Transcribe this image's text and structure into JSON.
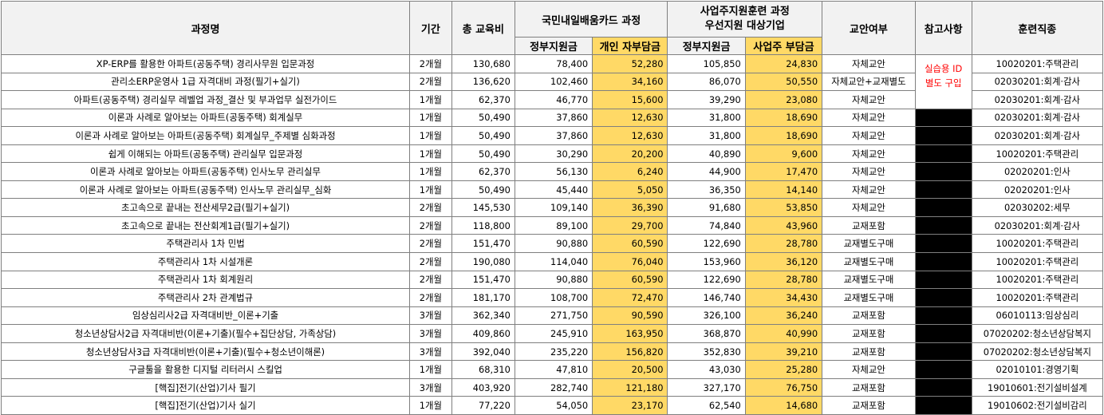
{
  "headers": {
    "course_name": "과정명",
    "period": "기간",
    "total_fee": "총 교육비",
    "card_group": "국민내일배움카드 과정",
    "employer_group_line1": "사업주지원훈련 과정",
    "employer_group_line2": "우선지원 대상기업",
    "textbook": "교안여부",
    "notes": "참고사항",
    "job_type": "훈련직종",
    "gov_support": "정부지원금",
    "personal_burden": "개인 자부담금",
    "gov_support2": "정부지원금",
    "employer_burden": "사업주 부담금"
  },
  "note_text_line1": "실습용 ID",
  "note_text_line2": "별도 구입",
  "colors": {
    "header_bg": "#f2f2f2",
    "highlight": "#ffd966",
    "note_text": "#ff0000",
    "blocked": "#000000"
  },
  "rows": [
    {
      "name": "XP-ERP를 활용한 아파트(공동주택) 경리사무원 입문과정",
      "period": "2개월",
      "total": "130,680",
      "gov": "78,400",
      "personal": "52,280",
      "gov2": "105,850",
      "employer": "24,830",
      "textbook": "자체교안",
      "job": "10020201:주택관리"
    },
    {
      "name": "관리소ERP운영사 1급 자격대비 과정(필기+실기)",
      "period": "2개월",
      "total": "136,620",
      "gov": "102,460",
      "personal": "34,160",
      "gov2": "86,070",
      "employer": "50,550",
      "textbook": "자체교안+교재별도",
      "job": "02030201:회계·감사"
    },
    {
      "name": "아파트(공동주택) 경리실무 레벨업 과정_결산 및 부과업무 실전가이드",
      "period": "1개월",
      "total": "62,370",
      "gov": "46,770",
      "personal": "15,600",
      "gov2": "39,290",
      "employer": "23,080",
      "textbook": "자체교안",
      "job": "02030201:회계·감사"
    },
    {
      "name": "이론과 사례로 알아보는 아파트(공동주택) 회계실무",
      "period": "1개월",
      "total": "50,490",
      "gov": "37,860",
      "personal": "12,630",
      "gov2": "31,800",
      "employer": "18,690",
      "textbook": "자체교안",
      "job": "02030201:회계·감사"
    },
    {
      "name": "이론과 사례로 알아보는 아파트(공동주택) 회계실무_주제별 심화과정",
      "period": "1개월",
      "total": "50,490",
      "gov": "37,860",
      "personal": "12,630",
      "gov2": "31,800",
      "employer": "18,690",
      "textbook": "자체교안",
      "job": "02030201:회계·감사"
    },
    {
      "name": "쉽게 이해되는 아파트(공동주택) 관리실무 입문과정",
      "period": "1개월",
      "total": "50,490",
      "gov": "30,290",
      "personal": "20,200",
      "gov2": "40,890",
      "employer": "9,600",
      "textbook": "자체교안",
      "job": "10020201:주택관리"
    },
    {
      "name": "이론과 사례로 알아보는 아파트(공동주택) 인사노무 관리실무",
      "period": "1개월",
      "total": "62,370",
      "gov": "56,130",
      "personal": "6,240",
      "gov2": "44,900",
      "employer": "17,470",
      "textbook": "자체교안",
      "job": "02020201:인사"
    },
    {
      "name": "이론과 사례로 알아보는 아파트(공동주택) 인사노무 관리실무_심화",
      "period": "1개월",
      "total": "50,490",
      "gov": "45,440",
      "personal": "5,050",
      "gov2": "36,350",
      "employer": "14,140",
      "textbook": "자체교안",
      "job": "02020201:인사"
    },
    {
      "name": "초고속으로 끝내는 전산세무2급(필기+실기)",
      "period": "2개월",
      "total": "145,530",
      "gov": "109,140",
      "personal": "36,390",
      "gov2": "91,680",
      "employer": "53,850",
      "textbook": "자체교안",
      "job": "02030202:세무"
    },
    {
      "name": "초고속으로 끝내는 전산회계1급(필기+실기)",
      "period": "2개월",
      "total": "118,800",
      "gov": "89,100",
      "personal": "29,700",
      "gov2": "74,840",
      "employer": "43,960",
      "textbook": "교재포함",
      "job": "02030201:회계·감사"
    },
    {
      "name": "주택관리사 1차 민법",
      "period": "2개월",
      "total": "151,470",
      "gov": "90,880",
      "personal": "60,590",
      "gov2": "122,690",
      "employer": "28,780",
      "textbook": "교재별도구매",
      "job": "10020201:주택관리"
    },
    {
      "name": "주택관리사 1차 시설개론",
      "period": "2개월",
      "total": "190,080",
      "gov": "114,040",
      "personal": "76,040",
      "gov2": "153,960",
      "employer": "36,120",
      "textbook": "교재별도구매",
      "job": "10020201:주택관리"
    },
    {
      "name": "주택관리사 1차 회계원리",
      "period": "2개월",
      "total": "151,470",
      "gov": "90,880",
      "personal": "60,590",
      "gov2": "122,690",
      "employer": "28,780",
      "textbook": "교재별도구매",
      "job": "10020201:주택관리"
    },
    {
      "name": "주택관리사 2차 관계법규",
      "period": "2개월",
      "total": "181,170",
      "gov": "108,700",
      "personal": "72,470",
      "gov2": "146,740",
      "employer": "34,430",
      "textbook": "교재별도구매",
      "job": "10020201:주택관리"
    },
    {
      "name": "임상심리사2급 자격대비반_이론+기출",
      "period": "3개월",
      "total": "362,340",
      "gov": "271,750",
      "personal": "90,590",
      "gov2": "326,100",
      "employer": "36,240",
      "textbook": "교재포함",
      "job": "06010113:임상심리"
    },
    {
      "name": "청소년상담사2급 자격대비반(이론+기출)(필수+집단상담, 가족상담)",
      "period": "3개월",
      "total": "409,860",
      "gov": "245,910",
      "personal": "163,950",
      "gov2": "368,870",
      "employer": "40,990",
      "textbook": "교재포함",
      "job": "07020202:청소년상담복지"
    },
    {
      "name": "청소년상담사3급 자격대비반(이론+기출)(필수+청소년이해론)",
      "period": "3개월",
      "total": "392,040",
      "gov": "235,220",
      "personal": "156,820",
      "gov2": "352,830",
      "employer": "39,210",
      "textbook": "교재포함",
      "job": "07020202:청소년상담복지"
    },
    {
      "name": "구글툴을 활용한 디지털 리터러시 스킬업",
      "period": "1개월",
      "total": "68,310",
      "gov": "47,810",
      "personal": "20,500",
      "gov2": "43,030",
      "employer": "25,280",
      "textbook": "자체교안",
      "job": "02010101:경영기획"
    },
    {
      "name": "[핵집]전기(산업)기사 필기",
      "period": "3개월",
      "total": "403,920",
      "gov": "282,740",
      "personal": "121,180",
      "gov2": "327,170",
      "employer": "76,750",
      "textbook": "교재포함",
      "job": "19010601:전기설비설계"
    },
    {
      "name": "[핵집]전기(산업)기사 실기",
      "period": "1개월",
      "total": "77,220",
      "gov": "54,050",
      "personal": "23,170",
      "gov2": "62,540",
      "employer": "14,680",
      "textbook": "교재포함",
      "job": "19010602:전기설비감리"
    }
  ]
}
